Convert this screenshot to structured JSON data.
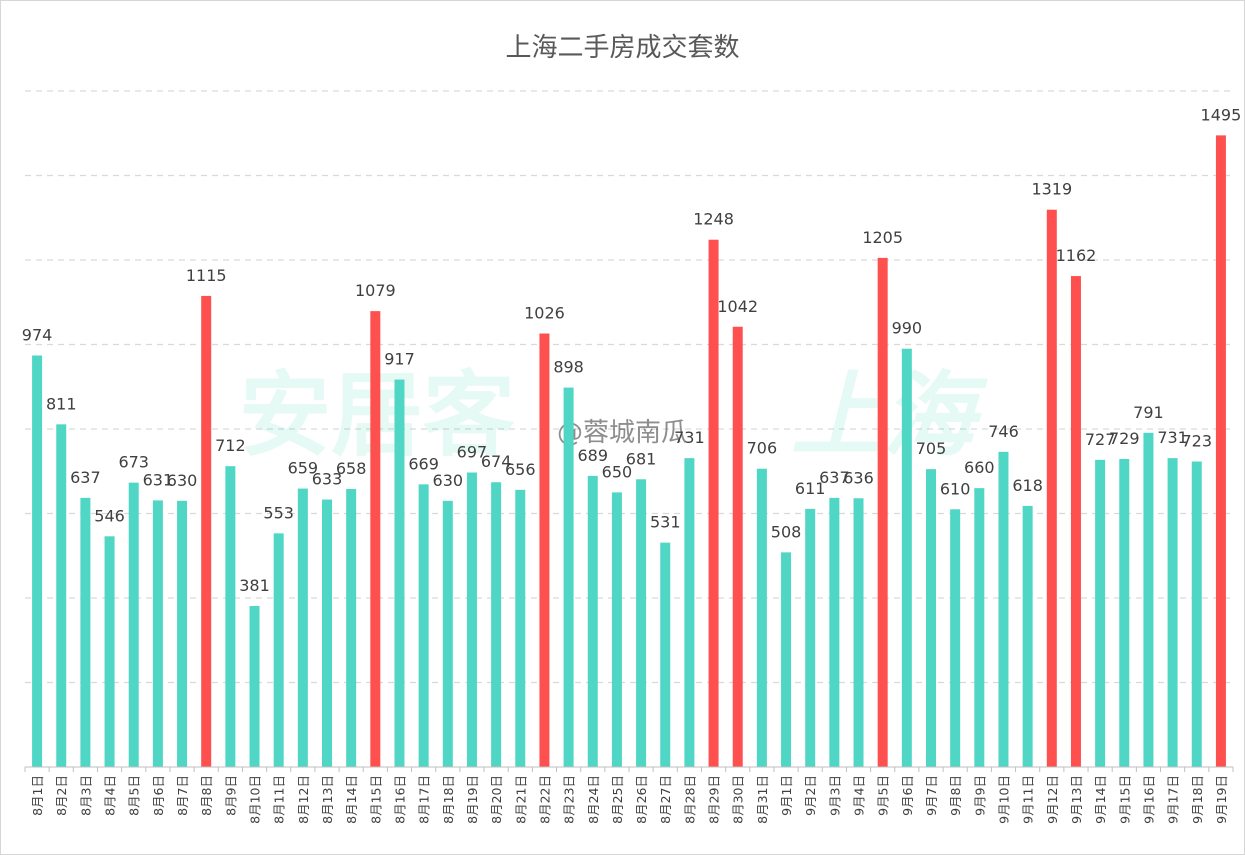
{
  "chart_data": {
    "type": "bar",
    "title": "上海二手房成交套数",
    "xlabel": "",
    "ylabel": "",
    "ylim": [
      0,
      1600
    ],
    "grid": true,
    "legend": "none",
    "categories": [
      "8月1日",
      "8月2日",
      "8月3日",
      "8月4日",
      "8月5日",
      "8月6日",
      "8月7日",
      "8月8日",
      "8月9日",
      "8月10日",
      "8月11日",
      "8月12日",
      "8月13日",
      "8月14日",
      "8月15日",
      "8月16日",
      "8月17日",
      "8月18日",
      "8月19日",
      "8月20日",
      "8月21日",
      "8月22日",
      "8月23日",
      "8月24日",
      "8月25日",
      "8月26日",
      "8月27日",
      "8月28日",
      "8月29日",
      "8月30日",
      "8月31日",
      "9月1日",
      "9月2日",
      "9月3日",
      "9月4日",
      "9月5日",
      "9月6日",
      "9月7日",
      "9月8日",
      "9月9日",
      "9月10日",
      "9月11日",
      "9月12日",
      "9月13日",
      "9月14日",
      "9月15日",
      "9月16日",
      "9月17日",
      "9月18日",
      "9月19日"
    ],
    "values": [
      974,
      811,
      637,
      546,
      673,
      631,
      630,
      1115,
      712,
      381,
      553,
      659,
      633,
      658,
      1079,
      917,
      669,
      630,
      697,
      674,
      656,
      1026,
      898,
      689,
      650,
      681,
      531,
      731,
      1248,
      1042,
      706,
      508,
      611,
      637,
      636,
      1205,
      990,
      705,
      610,
      660,
      746,
      618,
      1319,
      1162,
      727,
      729,
      791,
      731,
      723,
      1495
    ],
    "highlight_threshold": 1000,
    "colors": {
      "normal": "#4fd6c4",
      "highlight": "#ff5050"
    }
  },
  "watermarks": {
    "brand": "安居客",
    "city": "上海",
    "weibo": "@蓉城南瓜"
  }
}
